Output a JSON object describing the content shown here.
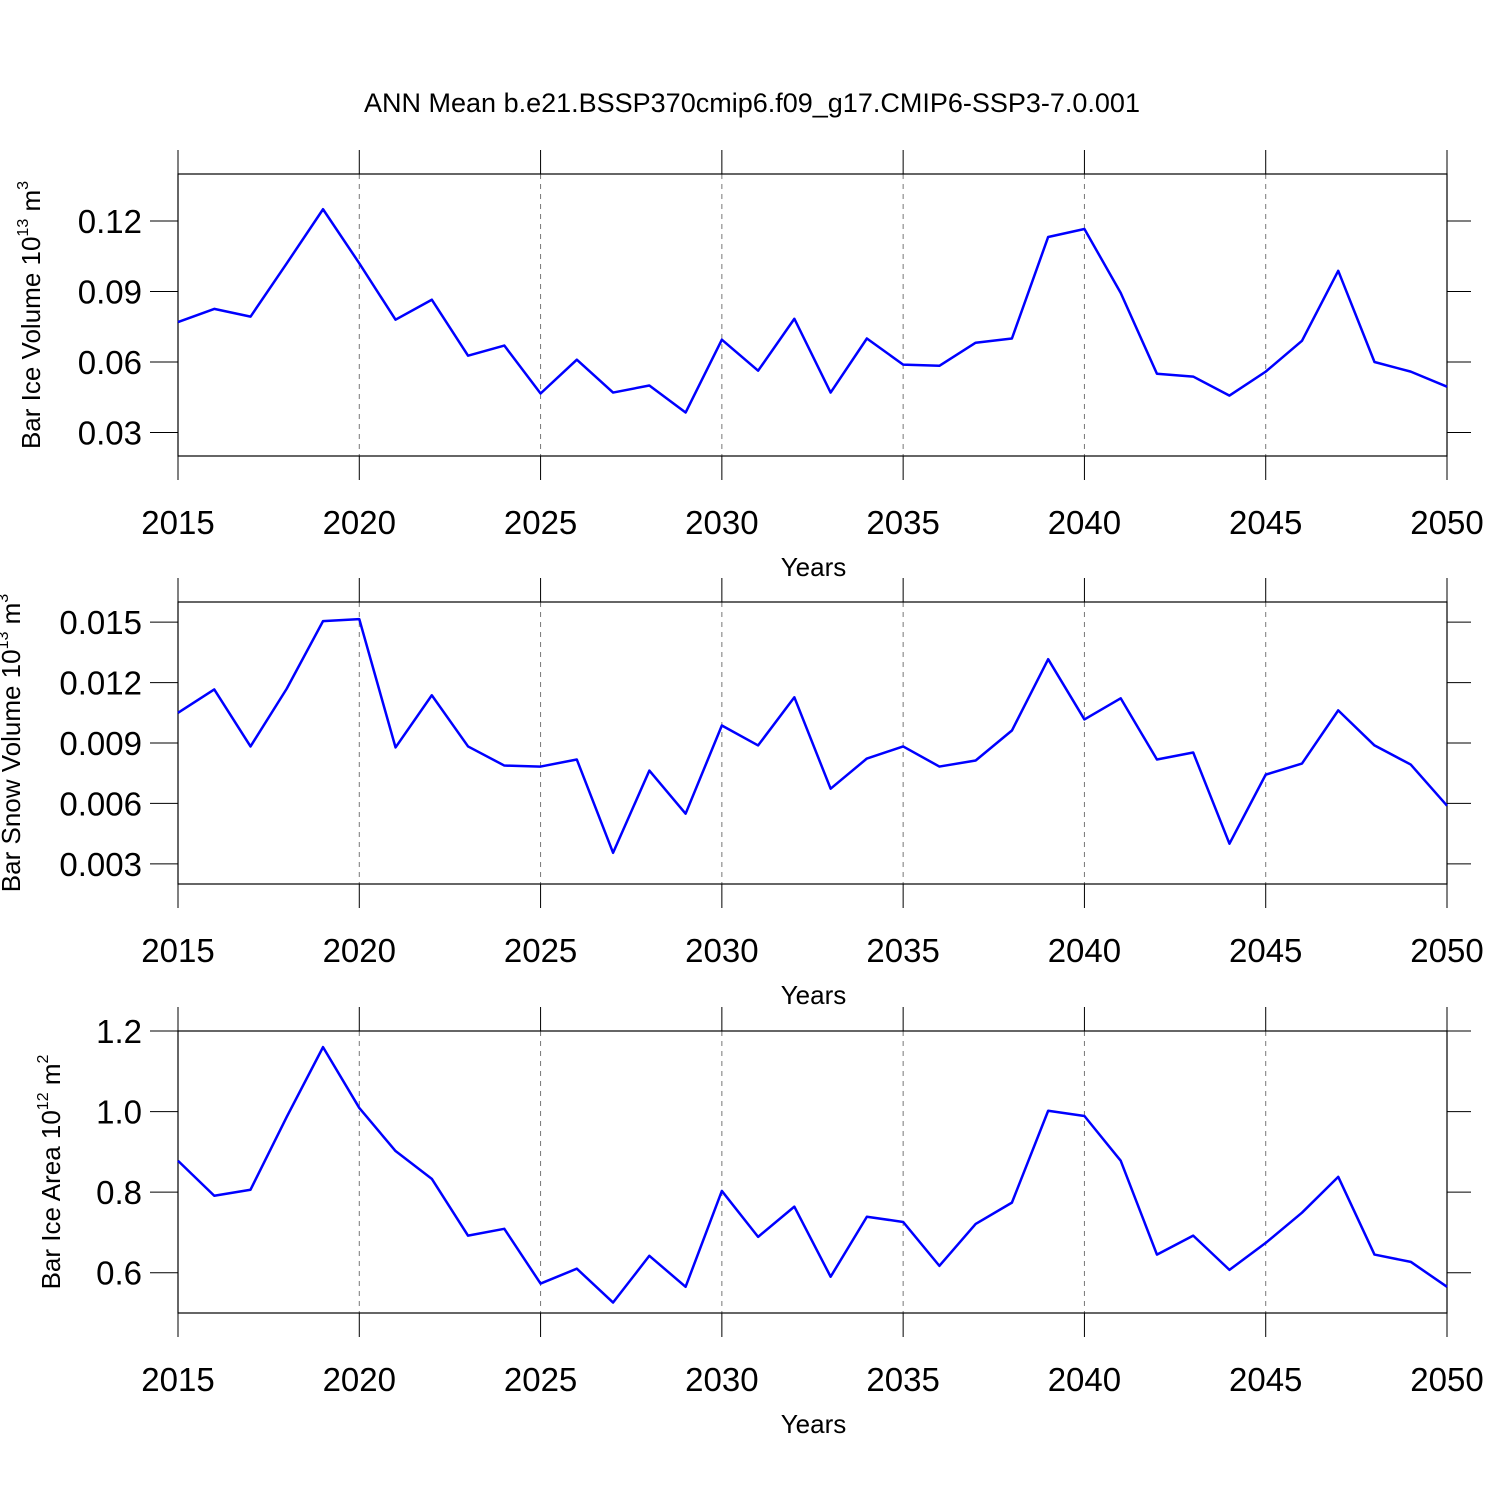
{
  "chart_data": [
    {
      "type": "line",
      "title": "ANN Mean b.e21.BSSP370cmip6.f09_g17.CMIP6-SSP3-7.0.001",
      "ylabel": [
        "Bar Ice Volume 10",
        "13",
        " m",
        "3"
      ],
      "xlabel": "Years",
      "x": [
        2015,
        2016,
        2017,
        2018,
        2019,
        2020,
        2021,
        2022,
        2023,
        2024,
        2025,
        2026,
        2027,
        2028,
        2029,
        2030,
        2031,
        2032,
        2033,
        2034,
        2035,
        2036,
        2037,
        2038,
        2039,
        2040,
        2041,
        2042,
        2043,
        2044,
        2045,
        2046,
        2047,
        2048,
        2049,
        2050
      ],
      "series": [
        {
          "color": "#0000ff",
          "values": [
            0.077,
            0.0826,
            0.0793,
            0.102,
            0.125,
            0.102,
            0.078,
            0.0865,
            0.0627,
            0.067,
            0.0466,
            0.061,
            0.047,
            0.05,
            0.0385,
            0.0695,
            0.0563,
            0.0784,
            0.047,
            0.07,
            0.0589,
            0.0584,
            0.0682,
            0.07,
            0.1132,
            0.1166,
            0.0894,
            0.055,
            0.0538,
            0.0457,
            0.0559,
            0.069,
            0.0988,
            0.06,
            0.0559,
            0.0495
          ]
        }
      ],
      "xlim": [
        2015,
        2050
      ],
      "xticks": [
        2015,
        2020,
        2025,
        2030,
        2035,
        2040,
        2045,
        2050
      ],
      "ylim": [
        0.02,
        0.14
      ],
      "yticks": [
        0.03,
        0.06,
        0.09,
        0.12
      ],
      "grid": true
    },
    {
      "type": "line",
      "ylabel": [
        "Bar Snow Volume 10",
        "13",
        " m",
        "3"
      ],
      "xlabel": "Years",
      "x": [
        2015,
        2016,
        2017,
        2018,
        2019,
        2020,
        2021,
        2022,
        2023,
        2024,
        2025,
        2026,
        2027,
        2028,
        2029,
        2030,
        2031,
        2032,
        2033,
        2034,
        2035,
        2036,
        2037,
        2038,
        2039,
        2040,
        2041,
        2042,
        2043,
        2044,
        2045,
        2046,
        2047,
        2048,
        2049,
        2050
      ],
      "series": [
        {
          "color": "#0000ff",
          "values": [
            0.0105,
            0.01166,
            0.00883,
            0.0117,
            0.01505,
            0.01515,
            0.00878,
            0.01137,
            0.00883,
            0.00788,
            0.00783,
            0.00818,
            0.00355,
            0.00763,
            0.00549,
            0.00987,
            0.00888,
            0.01127,
            0.00673,
            0.00823,
            0.00883,
            0.00783,
            0.00813,
            0.00962,
            0.01316,
            0.01017,
            0.01122,
            0.00818,
            0.00853,
            0.004,
            0.00743,
            0.00798,
            0.01062,
            0.00888,
            0.00793,
            0.00589
          ]
        }
      ],
      "xlim": [
        2015,
        2050
      ],
      "xticks": [
        2015,
        2020,
        2025,
        2030,
        2035,
        2040,
        2045,
        2050
      ],
      "ylim": [
        0.002,
        0.016
      ],
      "yticks": [
        0.003,
        0.006,
        0.009,
        0.012,
        0.015
      ],
      "grid": true
    },
    {
      "type": "line",
      "ylabel": [
        "Bar Ice Area 10",
        "12",
        " m",
        "2"
      ],
      "xlabel": "Years",
      "x": [
        2015,
        2016,
        2017,
        2018,
        2019,
        2020,
        2021,
        2022,
        2023,
        2024,
        2025,
        2026,
        2027,
        2028,
        2029,
        2030,
        2031,
        2032,
        2033,
        2034,
        2035,
        2036,
        2037,
        2038,
        2039,
        2040,
        2041,
        2042,
        2043,
        2044,
        2045,
        2046,
        2047,
        2048,
        2049,
        2050
      ],
      "series": [
        {
          "color": "#0000ff",
          "values": [
            0.878,
            0.791,
            0.806,
            0.987,
            1.16,
            1.009,
            0.902,
            0.833,
            0.692,
            0.709,
            0.573,
            0.61,
            0.526,
            0.642,
            0.565,
            0.803,
            0.689,
            0.764,
            0.59,
            0.739,
            0.726,
            0.617,
            0.721,
            0.774,
            1.002,
            0.989,
            0.878,
            0.645,
            0.692,
            0.607,
            0.674,
            0.749,
            0.838,
            0.645,
            0.627,
            0.565
          ]
        }
      ],
      "xlim": [
        2015,
        2050
      ],
      "xticks": [
        2015,
        2020,
        2025,
        2030,
        2035,
        2040,
        2045,
        2050
      ],
      "ylim": [
        0.5,
        1.2
      ],
      "yticks": [
        0.6,
        {
          "value": 0.8,
          "label": "0.8"
        },
        {
          "value": 1.0,
          "label": "1.0"
        },
        {
          "value": 1.2,
          "label": "1.2"
        }
      ],
      "grid": true
    }
  ]
}
